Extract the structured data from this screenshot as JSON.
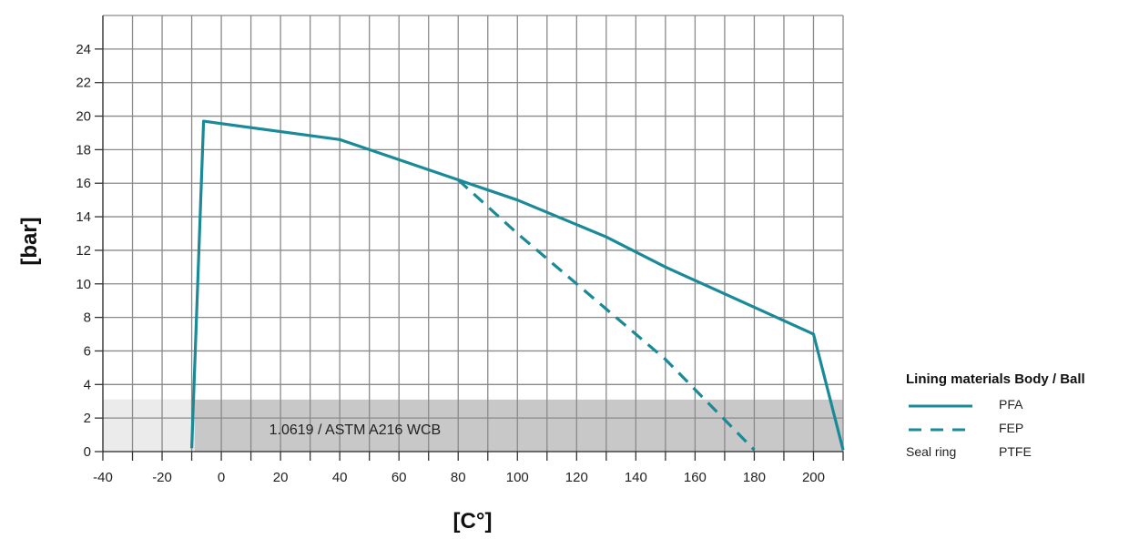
{
  "chart_data": {
    "type": "line",
    "xlabel": "[C°]",
    "ylabel": "[bar]",
    "xlim": [
      -40,
      210
    ],
    "ylim": [
      0,
      26
    ],
    "x_ticks": [
      -40,
      -20,
      0,
      20,
      40,
      60,
      80,
      100,
      120,
      140,
      160,
      180,
      200
    ],
    "y_ticks": [
      0,
      2,
      4,
      6,
      8,
      10,
      12,
      14,
      16,
      18,
      20,
      22,
      24
    ],
    "grid": true,
    "band": {
      "label": "1.0619 / ASTM A216 WCB",
      "y_range": [
        0,
        3.1
      ],
      "x_range": [
        -40,
        210
      ],
      "light_x_range": [
        -40,
        -9
      ],
      "light_color": "#ebebeb",
      "dark_color": "#c8c8c8"
    },
    "series": [
      {
        "name": "PFA",
        "style": "solid",
        "color": "#1a8a98",
        "x": [
          -10,
          -6,
          40,
          80,
          100,
          130,
          150,
          200,
          210
        ],
        "y": [
          0.2,
          19.7,
          18.6,
          16.2,
          15.0,
          12.8,
          11.0,
          7.0,
          0.1
        ]
      },
      {
        "name": "FEP",
        "style": "dashed",
        "color": "#1a8a98",
        "x": [
          80,
          100,
          130,
          150,
          180
        ],
        "y": [
          16.2,
          13.0,
          8.5,
          5.5,
          0.1
        ]
      }
    ],
    "legend": {
      "title": "Lining materials Body / Ball",
      "placement": "right",
      "items": [
        {
          "left": "",
          "label": "PFA",
          "style": "solid"
        },
        {
          "left": "",
          "label": "FEP",
          "style": "dashed"
        },
        {
          "left": "Seal ring",
          "label": "PTFE",
          "style": "none"
        }
      ]
    }
  }
}
